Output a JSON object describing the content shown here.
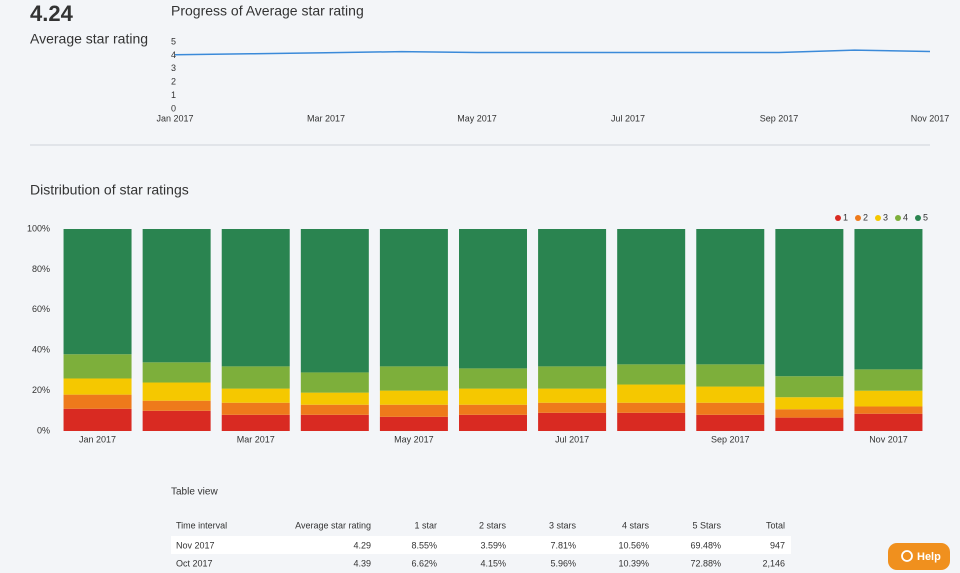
{
  "summary": {
    "value": "4.24",
    "label": "Average star rating"
  },
  "chart_data": [
    {
      "type": "line",
      "title": "Progress of Average star rating",
      "categories": [
        "Jan 2017",
        null,
        "Mar 2017",
        null,
        "May 2017",
        null,
        "Jul 2017",
        null,
        "Sep 2017",
        null,
        "Nov 2017"
      ],
      "values": [
        4.05,
        4.12,
        4.2,
        4.28,
        4.22,
        4.22,
        4.22,
        4.22,
        4.22,
        4.39,
        4.29
      ],
      "color": "#3b8ad9",
      "ylim": [
        0,
        5
      ],
      "yticks": [
        0,
        1,
        2,
        3,
        4,
        5
      ]
    },
    {
      "type": "stacked-bar",
      "title": "Distribution of star ratings",
      "categories": [
        "Jan 2017",
        null,
        "Mar 2017",
        null,
        "May 2017",
        null,
        "Jul 2017",
        null,
        "Sep 2017",
        null,
        "Nov 2017"
      ],
      "series": [
        {
          "name": "1",
          "color": "#d92a22",
          "values": [
            11,
            10,
            8,
            8,
            7,
            8,
            9,
            9,
            8,
            6.62,
            8.55
          ]
        },
        {
          "name": "2",
          "color": "#ee7a1b",
          "values": [
            7,
            5,
            6,
            5,
            6,
            5,
            5,
            5,
            6,
            4.15,
            3.59
          ]
        },
        {
          "name": "3",
          "color": "#f5c800",
          "values": [
            8,
            9,
            7,
            6,
            7,
            8,
            7,
            9,
            8,
            5.96,
            7.81
          ]
        },
        {
          "name": "4",
          "color": "#7daf3b",
          "values": [
            12,
            10,
            11,
            10,
            12,
            10,
            11,
            10,
            11,
            10.39,
            10.56
          ]
        },
        {
          "name": "5",
          "color": "#2a8450",
          "values": [
            62,
            66,
            68,
            71,
            68,
            69,
            68,
            67,
            67,
            72.88,
            69.48
          ]
        }
      ],
      "ylim": [
        0,
        100
      ],
      "yticks": [
        {
          "value": 0,
          "label": "0%"
        },
        {
          "value": 20,
          "label": "20%"
        },
        {
          "value": 40,
          "label": "40%"
        },
        {
          "value": 60,
          "label": "60%"
        },
        {
          "value": 80,
          "label": "80%"
        },
        {
          "value": 100,
          "label": "100%"
        }
      ],
      "legend": "top-right"
    }
  ],
  "table": {
    "title": "Table view",
    "header": [
      "Time interval",
      "Average star rating",
      "1 star",
      "2 stars",
      "3 stars",
      "4 stars",
      "5 Stars",
      "Total"
    ],
    "rows": [
      [
        "Nov 2017",
        "4.29",
        "8.55%",
        "3.59%",
        "7.81%",
        "10.56%",
        "69.48%",
        "947"
      ],
      [
        "Oct 2017",
        "4.39",
        "6.62%",
        "4.15%",
        "5.96%",
        "10.39%",
        "72.88%",
        "2,146"
      ]
    ]
  },
  "help": "Help"
}
